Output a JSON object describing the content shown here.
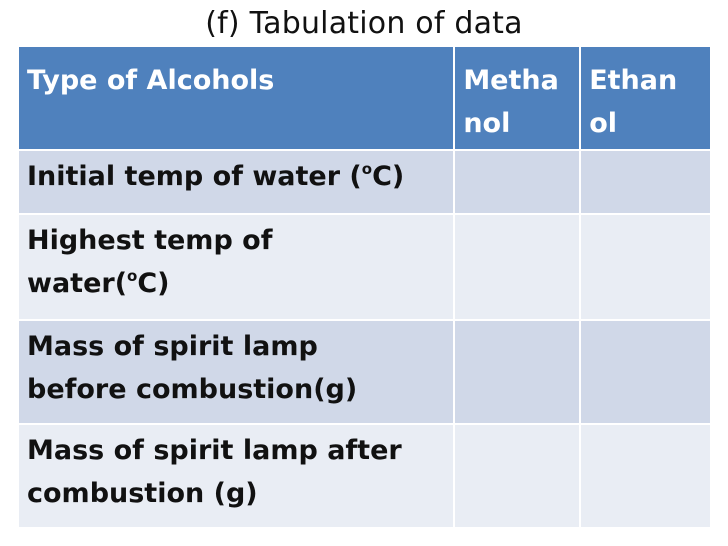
{
  "title": "(f) Tabulation of data",
  "table": {
    "header": {
      "label": "Type of Alcohols",
      "methanol_line1": "Metha",
      "methanol_line2": "nol",
      "ethanol_line1": "Ethan",
      "ethanol_line2": "ol"
    },
    "rows": [
      {
        "label_before": "Initial temp of water (",
        "sup": "o",
        "label_after": "C)",
        "methanol": "",
        "ethanol": ""
      },
      {
        "label_line1": "Highest temp of",
        "label_before": "water(",
        "sup": "o",
        "label_after": "C)",
        "methanol": "",
        "ethanol": ""
      },
      {
        "label_line1": "Mass of spirit lamp",
        "label_line2": "before combustion(g)",
        "methanol": "",
        "ethanol": ""
      },
      {
        "label_line1": "Mass of spirit lamp after",
        "label_line2": "combustion (g)",
        "methanol": "",
        "ethanol": ""
      }
    ]
  },
  "colors": {
    "header_bg": "#4f81bd",
    "row_bg": "#d0d8e8",
    "row_alt_bg": "#e9edf4"
  }
}
